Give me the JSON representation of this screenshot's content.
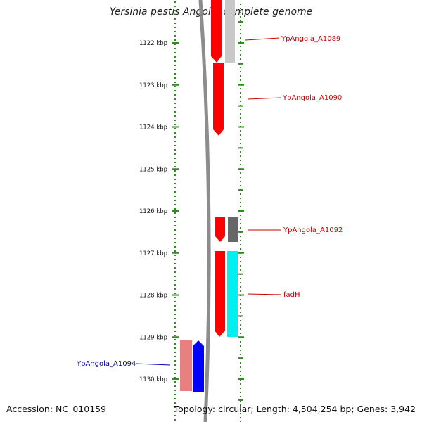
{
  "title": "Yersinia pestis Angola, complete genome",
  "footer": {
    "accession": "Accession: NC_010159",
    "info": "Topology: circular; Length: 4,504,254 bp; Genes: 3,942"
  },
  "axis_ticks": [
    {
      "kbp": 1122,
      "label": "1122 kbp"
    },
    {
      "kbp": 1123,
      "label": "1123 kbp"
    },
    {
      "kbp": 1124,
      "label": "1124 kbp"
    },
    {
      "kbp": 1125,
      "label": "1125 kbp"
    },
    {
      "kbp": 1126,
      "label": "1126 kbp"
    },
    {
      "kbp": 1127,
      "label": "1127 kbp"
    },
    {
      "kbp": 1128,
      "label": "1128 kbp"
    },
    {
      "kbp": 1129,
      "label": "1129 kbp"
    },
    {
      "kbp": 1130,
      "label": "1130 kbp"
    }
  ],
  "gene_labels": [
    {
      "text": "YpAngola_A1089",
      "color": "#cc0000"
    },
    {
      "text": "YpAngola_A1090",
      "color": "#cc0000"
    },
    {
      "text": "YpAngola_A1092",
      "color": "#cc0000"
    },
    {
      "text": "fadH",
      "color": "#cc0000"
    },
    {
      "text": "YpAngola_A1094",
      "color": "#0000aa"
    }
  ],
  "colors": {
    "tick": "#2e8b20",
    "backbone": "#8c8c8c",
    "forward_gene": "#ff0000",
    "reverse_gene": "#0000ff",
    "reverse_gene_pale": "#e88080",
    "cds_light": "#c8c8c8",
    "cds_dark": "#666666",
    "cds_cyan": "#00f0f0"
  }
}
